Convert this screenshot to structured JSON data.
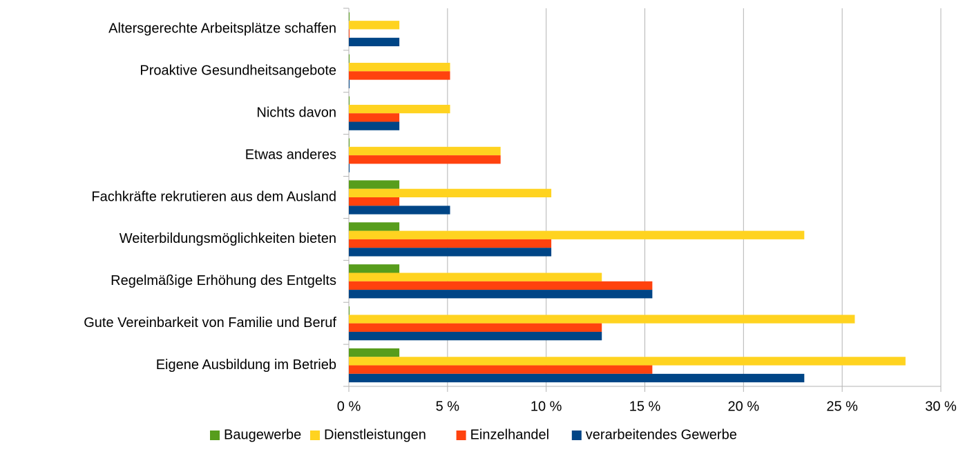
{
  "chart_data": {
    "type": "bar",
    "orientation": "horizontal",
    "categories": [
      "Altersgerechte Arbeitsplätze schaffen",
      "Proaktive Gesundheitsangebote",
      "Nichts davon",
      "Etwas anderes",
      "Fachkräfte rekrutieren  aus dem Ausland",
      "Weiterbildungsmöglichkeiten bieten",
      "Regelmäßige Erhöhung des Entgelts",
      "Gute Vereinbarkeit von Familie und Beruf",
      "Eigene Ausbildung im Betrieb"
    ],
    "series": [
      {
        "name": "Baugewerbe",
        "color": "#579d1c",
        "values": [
          0,
          0,
          0,
          0,
          2.56,
          2.56,
          2.56,
          0,
          2.56
        ]
      },
      {
        "name": "Dienstleistungen",
        "color": "#ffd320",
        "values": [
          2.56,
          5.13,
          5.13,
          7.69,
          10.26,
          23.08,
          12.82,
          25.64,
          28.21
        ]
      },
      {
        "name": "Einzelhandel",
        "color": "#ff420e",
        "values": [
          0,
          5.13,
          2.56,
          7.69,
          2.56,
          10.26,
          15.38,
          12.82,
          15.38
        ]
      },
      {
        "name": "verarbeitendes Gewerbe",
        "color": "#004586",
        "values": [
          2.56,
          0,
          2.56,
          0,
          5.13,
          10.26,
          15.38,
          12.82,
          23.08
        ]
      }
    ],
    "xlim": [
      0,
      30
    ],
    "xticks": [
      {
        "value": 0,
        "label": "0 %"
      },
      {
        "value": 5,
        "label": "5 %"
      },
      {
        "value": 10,
        "label": "10 %"
      },
      {
        "value": 15,
        "label": "15 %"
      },
      {
        "value": 20,
        "label": "20 %"
      },
      {
        "value": 25,
        "label": "25 %"
      },
      {
        "value": 30,
        "label": "30 %"
      }
    ],
    "grid": true,
    "legend": "bottom"
  }
}
